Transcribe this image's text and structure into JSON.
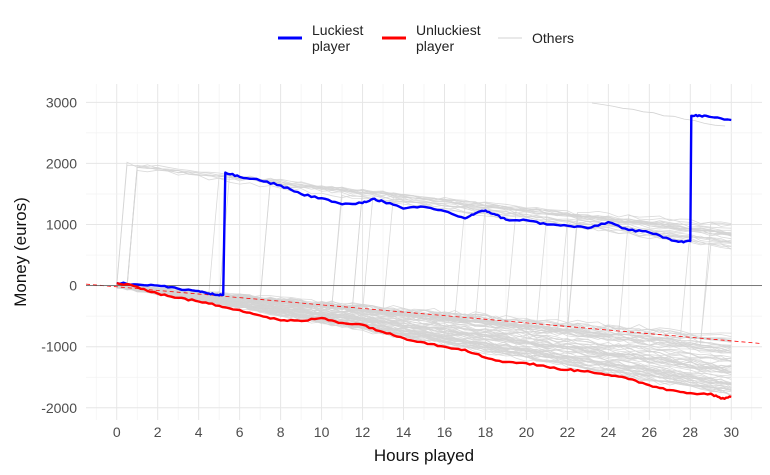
{
  "chart_data": {
    "type": "line",
    "xlabel": "Hours played",
    "ylabel": "Money (euros)",
    "xlim": [
      -1.5,
      31.5
    ],
    "ylim": [
      -2200,
      3300
    ],
    "x_ticks": [
      0,
      2,
      4,
      6,
      8,
      10,
      12,
      14,
      16,
      18,
      20,
      22,
      24,
      26,
      28,
      30
    ],
    "y_ticks": [
      -2000,
      -1000,
      0,
      1000,
      2000,
      3000
    ],
    "grid": true,
    "zero_line": 0,
    "legend_position": "top",
    "legend": [
      {
        "label_line1": "Luckiest",
        "label_line2": "player",
        "color": "#0000ff"
      },
      {
        "label_line1": "Unluckiest",
        "label_line2": "player",
        "color": "#ff0000"
      },
      {
        "label_line1": "Others",
        "label_line2": "",
        "color": "#d3d3d3"
      }
    ],
    "series": [
      {
        "name": "Luckiest player",
        "color": "#0000ff",
        "points": [
          [
            0,
            40
          ],
          [
            1,
            20
          ],
          [
            2,
            0
          ],
          [
            3,
            -50
          ],
          [
            4,
            -90
          ],
          [
            4.5,
            -130
          ],
          [
            5,
            -160
          ],
          [
            5.2,
            -150
          ],
          [
            5.3,
            1850
          ],
          [
            6,
            1780
          ],
          [
            7,
            1720
          ],
          [
            8,
            1640
          ],
          [
            9,
            1500
          ],
          [
            10,
            1430
          ],
          [
            11,
            1330
          ],
          [
            12,
            1350
          ],
          [
            12.5,
            1420
          ],
          [
            13,
            1380
          ],
          [
            14,
            1260
          ],
          [
            15,
            1290
          ],
          [
            16,
            1220
          ],
          [
            17,
            1100
          ],
          [
            17.5,
            1180
          ],
          [
            18,
            1230
          ],
          [
            18.5,
            1160
          ],
          [
            19,
            1080
          ],
          [
            20,
            1070
          ],
          [
            21,
            1000
          ],
          [
            22,
            980
          ],
          [
            23,
            940
          ],
          [
            24,
            1040
          ],
          [
            25,
            910
          ],
          [
            26,
            870
          ],
          [
            27,
            760
          ],
          [
            27.5,
            720
          ],
          [
            28,
            730
          ],
          [
            28.05,
            2780
          ],
          [
            28.5,
            2780
          ],
          [
            29,
            2760
          ],
          [
            30,
            2710
          ]
        ]
      },
      {
        "name": "Unluckiest player",
        "color": "#ff0000",
        "points": [
          [
            0,
            40
          ],
          [
            1,
            -20
          ],
          [
            2,
            -130
          ],
          [
            3,
            -200
          ],
          [
            4,
            -260
          ],
          [
            5,
            -330
          ],
          [
            6,
            -400
          ],
          [
            7,
            -490
          ],
          [
            8,
            -570
          ],
          [
            9,
            -580
          ],
          [
            10,
            -530
          ],
          [
            11,
            -610
          ],
          [
            12,
            -640
          ],
          [
            13,
            -760
          ],
          [
            14,
            -860
          ],
          [
            15,
            -930
          ],
          [
            16,
            -1000
          ],
          [
            17,
            -1050
          ],
          [
            18,
            -1180
          ],
          [
            19,
            -1250
          ],
          [
            20,
            -1270
          ],
          [
            21,
            -1330
          ],
          [
            22,
            -1380
          ],
          [
            23,
            -1400
          ],
          [
            24,
            -1460
          ],
          [
            25,
            -1530
          ],
          [
            26,
            -1630
          ],
          [
            27,
            -1710
          ],
          [
            28,
            -1760
          ],
          [
            29,
            -1770
          ],
          [
            29.5,
            -1850
          ],
          [
            30,
            -1820
          ]
        ]
      }
    ],
    "reference_line": {
      "color": "#ff0000",
      "style": "dashed",
      "points": [
        [
          -1.5,
          25
        ],
        [
          31.5,
          -950
        ]
      ]
    },
    "others_summary": {
      "color": "#d3d3d3",
      "count": 100,
      "upper_band_end_range": [
        600,
        1000
      ],
      "lower_band_end_range": [
        -1800,
        -800
      ]
    }
  }
}
